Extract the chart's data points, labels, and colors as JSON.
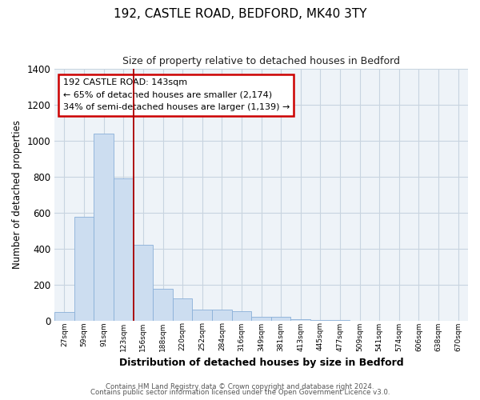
{
  "title": "192, CASTLE ROAD, BEDFORD, MK40 3TY",
  "subtitle": "Size of property relative to detached houses in Bedford",
  "xlabel": "Distribution of detached houses by size in Bedford",
  "ylabel": "Number of detached properties",
  "bar_color": "#ccddf0",
  "bar_edge_color": "#8ab0d8",
  "vline_color": "#aa0000",
  "annotation_title": "192 CASTLE ROAD: 143sqm",
  "annotation_line1": "← 65% of detached houses are smaller (2,174)",
  "annotation_line2": "34% of semi-detached houses are larger (1,139) →",
  "annotation_box_color": "#ffffff",
  "annotation_box_edge": "#cc0000",
  "categories": [
    "27sqm",
    "59sqm",
    "91sqm",
    "123sqm",
    "156sqm",
    "188sqm",
    "220sqm",
    "252sqm",
    "284sqm",
    "316sqm",
    "349sqm",
    "381sqm",
    "413sqm",
    "445sqm",
    "477sqm",
    "509sqm",
    "541sqm",
    "574sqm",
    "606sqm",
    "638sqm",
    "670sqm"
  ],
  "values": [
    50,
    575,
    1040,
    790,
    420,
    175,
    125,
    62,
    62,
    55,
    20,
    20,
    10,
    5,
    3,
    0,
    0,
    0,
    0,
    0,
    0
  ],
  "ylim": [
    0,
    1400
  ],
  "yticks": [
    0,
    200,
    400,
    600,
    800,
    1000,
    1200,
    1400
  ],
  "footer1": "Contains HM Land Registry data © Crown copyright and database right 2024.",
  "footer2": "Contains public sector information licensed under the Open Government Licence v3.0.",
  "bg_color": "#f0f4f8"
}
